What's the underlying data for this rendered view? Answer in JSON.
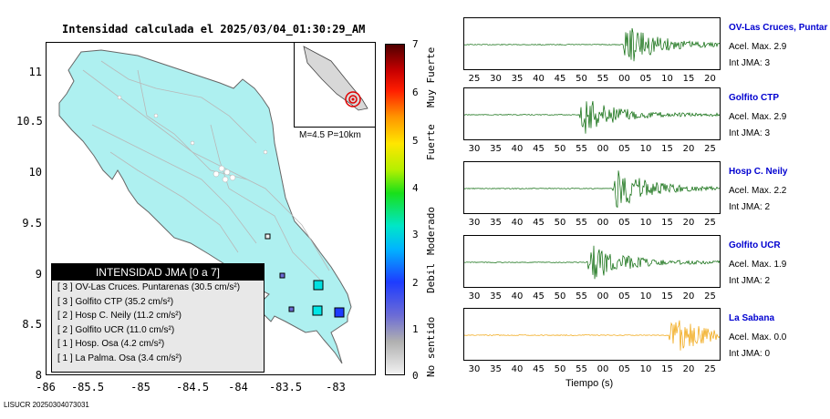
{
  "title": "Intensidad calculada el 2025/03/04_01:30:29_AM",
  "map": {
    "lat_ticks": [
      "11",
      "10.5",
      "10",
      "9.5",
      "9",
      "8.5",
      "8"
    ],
    "lon_ticks": [
      "-86",
      "-85.5",
      "-85",
      "-84.5",
      "-84",
      "-83.5",
      "-83"
    ],
    "land_color": "#aef0f0",
    "inset_label": "M=4.5 P=10km"
  },
  "legend": {
    "header": "INTENSIDAD JMA [0 a 7]",
    "rows": [
      "[ 3 ]  OV-Las Cruces. Puntarenas (30.5 cm/s²)",
      "[ 3 ]  Golfito CTP (35.2 cm/s²)",
      "[ 2 ]  Hosp C. Neily (11.2 cm/s²)",
      "[ 2 ]  Golfito UCR (11.0 cm/s²)",
      "[ 1 ]  Hosp. Osa (4.2 cm/s²)",
      "[ 1 ]  La Palma. Osa (3.4 cm/s²)"
    ]
  },
  "colorbar": {
    "numbers": [
      "7",
      "6",
      "5",
      "4",
      "3",
      "2",
      "1",
      "0"
    ],
    "labels": [
      "Muy Fuerte",
      "Fuerte",
      "Moderado",
      "Debil",
      "No sentido"
    ]
  },
  "stations": [
    {
      "name": "OV-Las Cruces, Puntar",
      "acel": "Acel. Max. 2.9",
      "int": "Int JMA: 3",
      "ticks": [
        "25",
        "30",
        "35",
        "40",
        "45",
        "50",
        "55",
        "00",
        "05",
        "10",
        "15",
        "20"
      ],
      "color": "#006400"
    },
    {
      "name": "Golfito CTP",
      "acel": "Acel. Max. 2.9",
      "int": "Int JMA: 3",
      "ticks": [
        "30",
        "35",
        "40",
        "45",
        "50",
        "55",
        "00",
        "05",
        "10",
        "15",
        "20",
        "25"
      ],
      "color": "#006400"
    },
    {
      "name": "Hosp C. Neily",
      "acel": "Acel. Max. 2.2",
      "int": "Int JMA: 2",
      "ticks": [
        "30",
        "35",
        "40",
        "45",
        "50",
        "55",
        "00",
        "05",
        "10",
        "15",
        "20",
        "25"
      ],
      "color": "#006400"
    },
    {
      "name": "Golfito UCR",
      "acel": "Acel. Max. 1.9",
      "int": "Int JMA: 2",
      "ticks": [
        "30",
        "35",
        "40",
        "45",
        "50",
        "55",
        "00",
        "05",
        "10",
        "15",
        "20",
        "25"
      ],
      "color": "#006400"
    },
    {
      "name": "La Sabana",
      "acel": "Acel. Max. 0.0",
      "int": "Int JMA: 0",
      "ticks": [
        "30",
        "35",
        "40",
        "45",
        "50",
        "55",
        "00",
        "05",
        "10",
        "15",
        "20",
        "25"
      ],
      "color": "#f0a000"
    }
  ],
  "xaxis_label": "Tiempo (s)",
  "footer": "LISUCR 20250304073031"
}
